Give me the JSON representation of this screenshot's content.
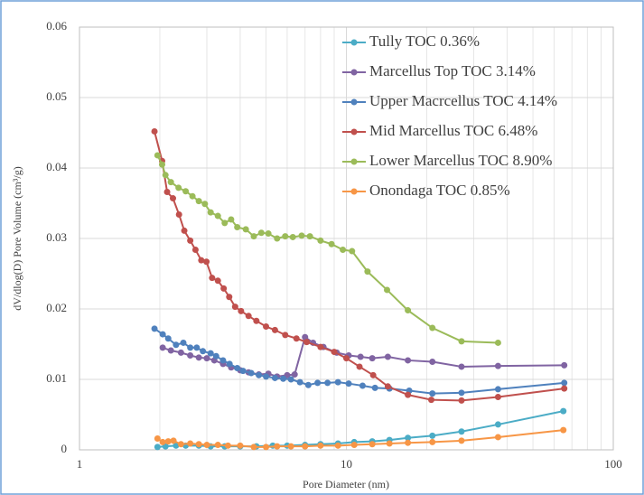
{
  "chart_data": {
    "type": "line",
    "x_label": "Pore Diameter (nm)",
    "y_label": "dV/dlog(D) Pore Volume (cm³/g)",
    "xlim": [
      1,
      100
    ],
    "xticks": [
      1,
      10,
      100
    ],
    "xscale": "log",
    "ylim": [
      0,
      0.06
    ],
    "yticks": [
      0,
      0.01,
      0.02,
      0.03,
      0.04,
      0.05,
      0.06
    ],
    "grid": true,
    "legend": "upper right",
    "series": [
      {
        "name": "Tully TOC 0.36%",
        "color": "#4bacc6",
        "x": [
          1.96,
          2.1,
          2.3,
          2.5,
          2.8,
          3.1,
          3.5,
          4.0,
          4.6,
          5.3,
          6.0,
          7.0,
          8.0,
          9.3,
          10.7,
          12.5,
          14.5,
          17,
          21,
          27,
          37,
          65
        ],
        "values": [
          0.0004,
          0.0005,
          0.0006,
          0.0006,
          0.0006,
          0.0005,
          0.0005,
          0.0005,
          0.0005,
          0.0006,
          0.0006,
          0.0007,
          0.0008,
          0.0009,
          0.0011,
          0.0012,
          0.0014,
          0.0017,
          0.002,
          0.0026,
          0.0036,
          0.0055
        ]
      },
      {
        "name": "Marcellus Top TOC 3.14%",
        "color": "#8064a2",
        "x": [
          2.05,
          2.2,
          2.4,
          2.6,
          2.8,
          3.0,
          3.2,
          3.45,
          3.7,
          4.0,
          4.3,
          4.7,
          5.1,
          5.5,
          6.0,
          6.4,
          7.0,
          7.5,
          8.2,
          9.2,
          10.2,
          11.3,
          12.5,
          14.3,
          17,
          21,
          27,
          37,
          65.5
        ],
        "values": [
          0.0145,
          0.0141,
          0.0138,
          0.0134,
          0.0131,
          0.013,
          0.0127,
          0.0122,
          0.0117,
          0.0113,
          0.011,
          0.0107,
          0.0108,
          0.0104,
          0.0106,
          0.0107,
          0.016,
          0.0152,
          0.0146,
          0.0138,
          0.0134,
          0.0132,
          0.013,
          0.0132,
          0.0127,
          0.0125,
          0.0118,
          0.0119,
          0.012
        ]
      },
      {
        "name": "Upper Macrcellus TOC 4.14%",
        "color": "#4f81bd",
        "x": [
          1.91,
          2.05,
          2.15,
          2.3,
          2.45,
          2.6,
          2.75,
          2.9,
          3.1,
          3.25,
          3.45,
          3.65,
          3.9,
          4.1,
          4.4,
          4.7,
          5.0,
          5.4,
          5.8,
          6.2,
          6.7,
          7.2,
          7.8,
          8.5,
          9.3,
          10.2,
          11.5,
          12.8,
          14.5,
          17.2,
          21,
          27,
          37,
          65.5
        ],
        "values": [
          0.0172,
          0.0164,
          0.0158,
          0.0149,
          0.0152,
          0.0145,
          0.0145,
          0.014,
          0.0137,
          0.0133,
          0.0127,
          0.0122,
          0.0116,
          0.0112,
          0.0109,
          0.0106,
          0.0104,
          0.0102,
          0.0101,
          0.01,
          0.0096,
          0.0092,
          0.0095,
          0.0095,
          0.0096,
          0.0094,
          0.0091,
          0.0088,
          0.0087,
          0.0084,
          0.008,
          0.0081,
          0.0086,
          0.0095
        ]
      },
      {
        "name": "Mid Marcellus TOC 6.48%",
        "color": "#c0504d",
        "x": [
          1.91,
          2.04,
          2.13,
          2.24,
          2.36,
          2.47,
          2.6,
          2.72,
          2.86,
          2.99,
          3.14,
          3.3,
          3.47,
          3.64,
          3.83,
          4.03,
          4.3,
          4.6,
          5.0,
          5.4,
          5.9,
          6.5,
          7.1,
          8.0,
          9.0,
          10.0,
          11.2,
          12.6,
          14.3,
          17,
          20.8,
          27,
          37,
          65.5
        ],
        "values": [
          0.0452,
          0.041,
          0.0366,
          0.0357,
          0.0334,
          0.0311,
          0.0297,
          0.0284,
          0.0269,
          0.0267,
          0.0244,
          0.024,
          0.0229,
          0.0217,
          0.0203,
          0.0197,
          0.019,
          0.0183,
          0.0175,
          0.017,
          0.0163,
          0.0158,
          0.0153,
          0.0146,
          0.0139,
          0.013,
          0.0118,
          0.0106,
          0.009,
          0.0078,
          0.0071,
          0.007,
          0.0075,
          0.0087
        ]
      },
      {
        "name": "Lower Marcellus TOC 8.90%",
        "color": "#9bbb59",
        "x": [
          1.96,
          2.04,
          2.1,
          2.2,
          2.35,
          2.5,
          2.65,
          2.8,
          2.95,
          3.1,
          3.3,
          3.5,
          3.7,
          3.9,
          4.2,
          4.5,
          4.8,
          5.1,
          5.5,
          5.9,
          6.3,
          6.8,
          7.3,
          8.0,
          8.8,
          9.7,
          10.5,
          12.0,
          14.2,
          17,
          21,
          27,
          37
        ],
        "values": [
          0.0418,
          0.0405,
          0.039,
          0.038,
          0.0372,
          0.0367,
          0.036,
          0.0353,
          0.0349,
          0.0337,
          0.0332,
          0.0322,
          0.0327,
          0.0316,
          0.0313,
          0.0303,
          0.0308,
          0.0307,
          0.03,
          0.0303,
          0.0302,
          0.0304,
          0.0303,
          0.0297,
          0.0292,
          0.0284,
          0.0282,
          0.0253,
          0.0227,
          0.0198,
          0.0173,
          0.0154,
          0.0152
        ]
      },
      {
        "name": "Onondaga TOC 0.85%",
        "color": "#f79646",
        "x": [
          1.96,
          2.05,
          2.15,
          2.25,
          2.4,
          2.6,
          2.8,
          3.0,
          3.3,
          3.6,
          4.0,
          4.5,
          5.0,
          5.5,
          6.2,
          7.0,
          8.0,
          9.3,
          10.7,
          12.5,
          14.5,
          17,
          21,
          27,
          37,
          65
        ],
        "values": [
          0.0016,
          0.0011,
          0.0012,
          0.0013,
          0.0008,
          0.0009,
          0.0008,
          0.0007,
          0.0007,
          0.0006,
          0.0006,
          0.0004,
          0.0004,
          0.0005,
          0.0005,
          0.0005,
          0.0006,
          0.0006,
          0.0007,
          0.0008,
          0.0009,
          0.001,
          0.0011,
          0.0013,
          0.0018,
          0.0028
        ]
      }
    ]
  }
}
